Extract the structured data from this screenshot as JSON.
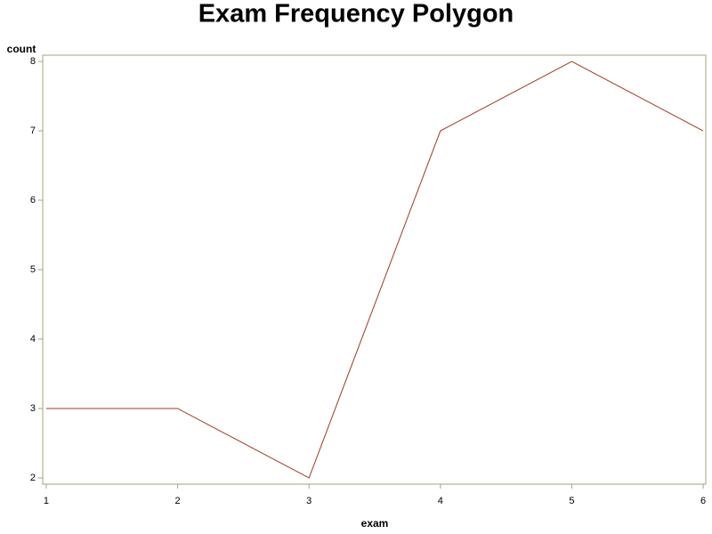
{
  "chart_data": {
    "type": "line",
    "title": "Exam Frequency Polygon",
    "x_label": "exam",
    "y_label": "count",
    "x": [
      1,
      2,
      3,
      4,
      5,
      6
    ],
    "series": [
      {
        "name": "count",
        "color": "#a03a1e",
        "values": [
          3,
          3,
          2,
          7,
          8,
          7
        ]
      }
    ],
    "xlim": [
      0.973,
      6.02
    ],
    "xticks": [
      1,
      2,
      3,
      4,
      5,
      6
    ],
    "ylim": [
      1.91,
      8.09
    ],
    "yticks": [
      2,
      3,
      4,
      5,
      6,
      7,
      8
    ],
    "grid": false,
    "frame_color": "#a3a67a"
  }
}
